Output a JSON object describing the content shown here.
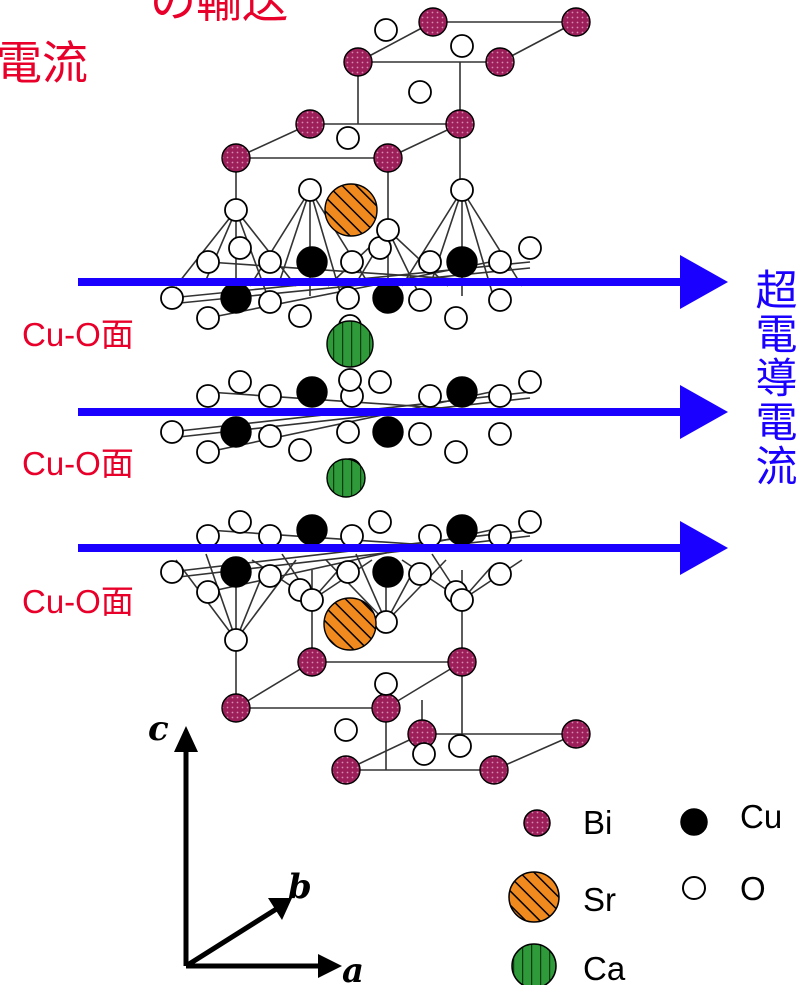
{
  "title": {
    "line1": "の輸送",
    "line2": "電流"
  },
  "layer_labels": [
    "Cu-O面",
    "Cu-O面",
    "Cu-O面"
  ],
  "current_label": "超電導電流",
  "axes": {
    "c": "c",
    "b": "b",
    "a": "a"
  },
  "legend": [
    {
      "symbol": "Bi",
      "label": "Bi"
    },
    {
      "symbol": "Sr",
      "label": "Sr"
    },
    {
      "symbol": "Ca",
      "label": "Ca"
    },
    {
      "symbol": "Cu",
      "label": "Cu"
    },
    {
      "symbol": "O",
      "label": "O"
    }
  ],
  "colors": {
    "title": "#e8002a",
    "layer_label": "#e8002a",
    "current_arrow": "#1a00ff",
    "Bi": "#9c1f5a",
    "Sr": "#f08a1e",
    "Ca": "#2f9a3a",
    "Cu": "#000000",
    "O": "#ffffff"
  }
}
